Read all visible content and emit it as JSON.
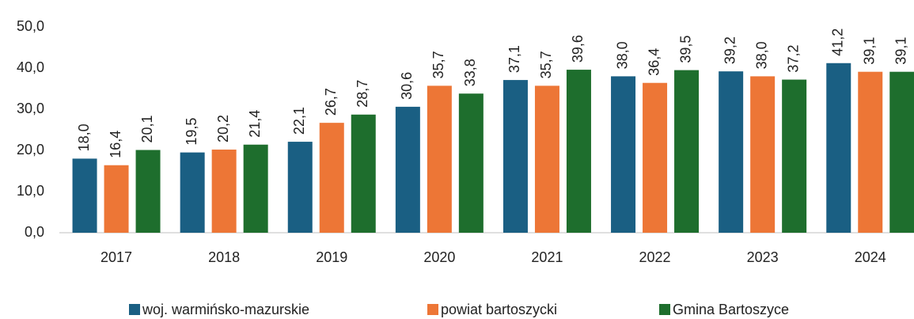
{
  "chart_data": {
    "type": "bar",
    "categories": [
      "2017",
      "2018",
      "2019",
      "2020",
      "2021",
      "2022",
      "2023",
      "2024"
    ],
    "series": [
      {
        "name": "woj. warmińsko-mazurskie",
        "color": "#1a5f83",
        "values": [
          18.0,
          19.5,
          22.1,
          30.6,
          37.1,
          38.0,
          39.2,
          41.2
        ],
        "value_labels": [
          "18,0",
          "19,5",
          "22,1",
          "30,6",
          "37,1",
          "38,0",
          "39,2",
          "41,2"
        ]
      },
      {
        "name": "powiat bartoszycki",
        "color": "#ed7636",
        "values": [
          16.4,
          20.2,
          26.7,
          35.7,
          35.7,
          36.4,
          38.0,
          39.1
        ],
        "value_labels": [
          "16,4",
          "20,2",
          "26,7",
          "35,7",
          "35,7",
          "36,4",
          "38,0",
          "39,1"
        ]
      },
      {
        "name": "Gmina Bartoszyce",
        "color": "#1e6e2d",
        "values": [
          20.1,
          21.4,
          28.7,
          33.8,
          39.6,
          39.5,
          37.2,
          39.1
        ],
        "value_labels": [
          "20,1",
          "21,4",
          "28,7",
          "33,8",
          "39,6",
          "39,5",
          "37,2",
          "39,1"
        ]
      }
    ],
    "ylim": [
      0,
      50
    ],
    "yticks": [
      {
        "value": 0,
        "label": "0,0"
      },
      {
        "value": 10,
        "label": "10,0"
      },
      {
        "value": 20,
        "label": "20,0"
      },
      {
        "value": 30,
        "label": "30,0"
      },
      {
        "value": 40,
        "label": "40,0"
      },
      {
        "value": 50,
        "label": "50,0"
      }
    ],
    "grid": false,
    "legend": "bottom"
  }
}
